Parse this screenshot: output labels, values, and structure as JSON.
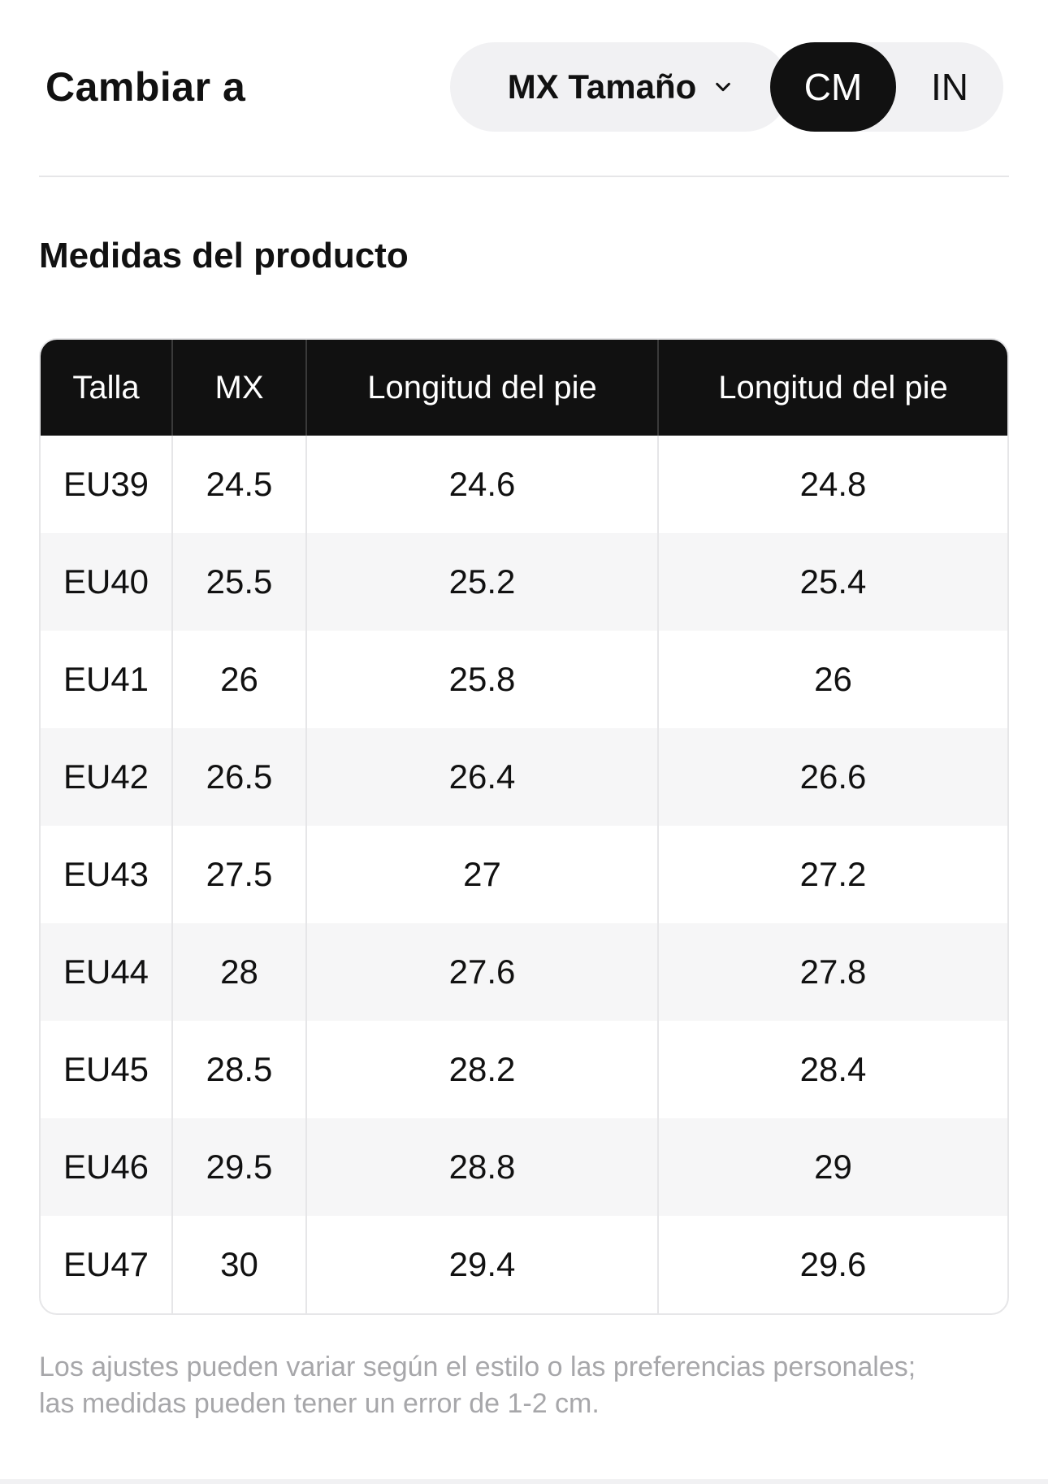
{
  "header": {
    "title": "Cambiar a",
    "size_dropdown_label": "MX Tamaño",
    "units": [
      {
        "label": "CM",
        "active": true
      },
      {
        "label": "IN",
        "active": false
      }
    ]
  },
  "section_title": "Medidas del producto",
  "table": {
    "columns": [
      "Talla",
      "MX",
      "Longitud del pie",
      "Longitud del pie"
    ],
    "rows": [
      [
        "EU39",
        "24.5",
        "24.6",
        "24.8"
      ],
      [
        "EU40",
        "25.5",
        "25.2",
        "25.4"
      ],
      [
        "EU41",
        "26",
        "25.8",
        "26"
      ],
      [
        "EU42",
        "26.5",
        "26.4",
        "26.6"
      ],
      [
        "EU43",
        "27.5",
        "27",
        "27.2"
      ],
      [
        "EU44",
        "28",
        "27.6",
        "27.8"
      ],
      [
        "EU45",
        "28.5",
        "28.2",
        "28.4"
      ],
      [
        "EU46",
        "29.5",
        "28.8",
        "29"
      ],
      [
        "EU47",
        "30",
        "29.4",
        "29.6"
      ]
    ]
  },
  "footnote": "Los ajustes pueden variar según el estilo o las preferencias personales; las medidas pueden tener un error de 1-2 cm.",
  "colors": {
    "header_bg": "#111111",
    "pill_bg": "#f1f1f3",
    "alt_row_bg": "#f6f6f7",
    "footnote_text": "#a7a7aa"
  },
  "icons": {
    "dropdown": "chevron-down-icon"
  }
}
